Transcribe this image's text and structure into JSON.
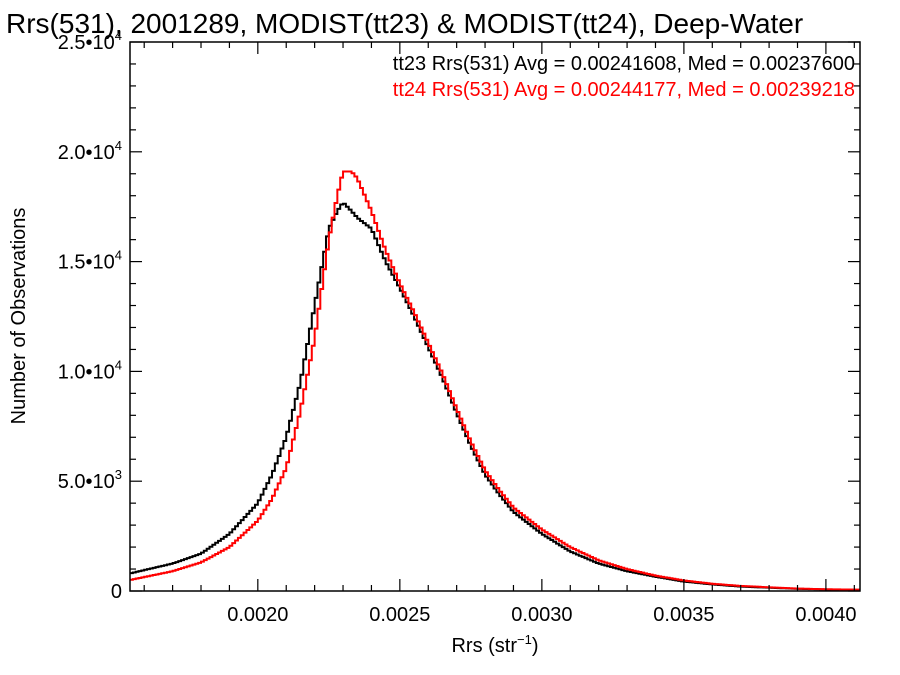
{
  "chart_data": {
    "type": "line",
    "title": "Rrs(531), 2001289, MODIST(tt23) & MODIST(tt24), Deep-Water",
    "xlabel": {
      "main": "Rrs (str",
      "sup": "−1",
      "close": ")"
    },
    "ylabel": "Number of Observations",
    "xlim": [
      0.00155,
      0.00412
    ],
    "ylim": [
      0,
      25000
    ],
    "x_ticks": [
      {
        "value": 0.002,
        "label": "0.0020"
      },
      {
        "value": 0.0025,
        "label": "0.0025"
      },
      {
        "value": 0.003,
        "label": "0.0030"
      },
      {
        "value": 0.0035,
        "label": "0.0035"
      },
      {
        "value": 0.004,
        "label": "0.0040"
      }
    ],
    "y_ticks": [
      {
        "value": 0,
        "label": "0",
        "sup": ""
      },
      {
        "value": 5000,
        "label": "5.0•10",
        "sup": "3"
      },
      {
        "value": 10000,
        "label": "1.0•10",
        "sup": "4"
      },
      {
        "value": 15000,
        "label": "1.5•10",
        "sup": "4"
      },
      {
        "value": 20000,
        "label": "2.0•10",
        "sup": "4"
      },
      {
        "value": 25000,
        "label": "2.5•10",
        "sup": "4"
      }
    ],
    "grid": false,
    "legend_position": "top-right",
    "series": [
      {
        "name": "tt23",
        "color": "#000000",
        "legend": "tt23 Rrs(531) Avg = 0.00241608, Med = 0.00237600",
        "points": [
          [
            0.00155,
            800
          ],
          [
            0.0017,
            1250
          ],
          [
            0.0018,
            1700
          ],
          [
            0.0019,
            2600
          ],
          [
            0.002,
            4000
          ],
          [
            0.00205,
            5300
          ],
          [
            0.0021,
            7000
          ],
          [
            0.00215,
            9500
          ],
          [
            0.0022,
            13000
          ],
          [
            0.00225,
            16500
          ],
          [
            0.00228,
            17300
          ],
          [
            0.0023,
            17700
          ],
          [
            0.00233,
            17300
          ],
          [
            0.00235,
            17000
          ],
          [
            0.0024,
            16500
          ],
          [
            0.00245,
            15000
          ],
          [
            0.0025,
            13800
          ],
          [
            0.00255,
            12500
          ],
          [
            0.0026,
            11100
          ],
          [
            0.00265,
            9700
          ],
          [
            0.0027,
            8100
          ],
          [
            0.00275,
            6600
          ],
          [
            0.0028,
            5300
          ],
          [
            0.00285,
            4400
          ],
          [
            0.0029,
            3600
          ],
          [
            0.003,
            2600
          ],
          [
            0.0031,
            1800
          ],
          [
            0.0032,
            1250
          ],
          [
            0.0033,
            900
          ],
          [
            0.0034,
            650
          ],
          [
            0.0035,
            430
          ],
          [
            0.0036,
            300
          ],
          [
            0.0037,
            200
          ],
          [
            0.0038,
            150
          ],
          [
            0.0039,
            100
          ],
          [
            0.004,
            70
          ],
          [
            0.00412,
            50
          ]
        ]
      },
      {
        "name": "tt24",
        "color": "#ff0000",
        "legend": "tt24 Rrs(531) Avg = 0.00244177, Med = 0.00239218",
        "points": [
          [
            0.00155,
            500
          ],
          [
            0.0017,
            900
          ],
          [
            0.0018,
            1300
          ],
          [
            0.0019,
            2000
          ],
          [
            0.002,
            3200
          ],
          [
            0.00205,
            4200
          ],
          [
            0.0021,
            5600
          ],
          [
            0.00215,
            8200
          ],
          [
            0.0022,
            11500
          ],
          [
            0.00225,
            16000
          ],
          [
            0.00228,
            18000
          ],
          [
            0.0023,
            19100
          ],
          [
            0.00233,
            19100
          ],
          [
            0.00235,
            18800
          ],
          [
            0.0024,
            17300
          ],
          [
            0.00245,
            15500
          ],
          [
            0.0025,
            14000
          ],
          [
            0.00255,
            12700
          ],
          [
            0.0026,
            11300
          ],
          [
            0.00265,
            9900
          ],
          [
            0.0027,
            8300
          ],
          [
            0.00275,
            6800
          ],
          [
            0.0028,
            5500
          ],
          [
            0.00285,
            4600
          ],
          [
            0.0029,
            3800
          ],
          [
            0.003,
            2800
          ],
          [
            0.0031,
            2000
          ],
          [
            0.0032,
            1400
          ],
          [
            0.0033,
            1000
          ],
          [
            0.0034,
            700
          ],
          [
            0.0035,
            480
          ],
          [
            0.0036,
            330
          ],
          [
            0.0037,
            230
          ],
          [
            0.0038,
            170
          ],
          [
            0.0039,
            110
          ],
          [
            0.004,
            80
          ],
          [
            0.00412,
            60
          ]
        ]
      }
    ]
  }
}
